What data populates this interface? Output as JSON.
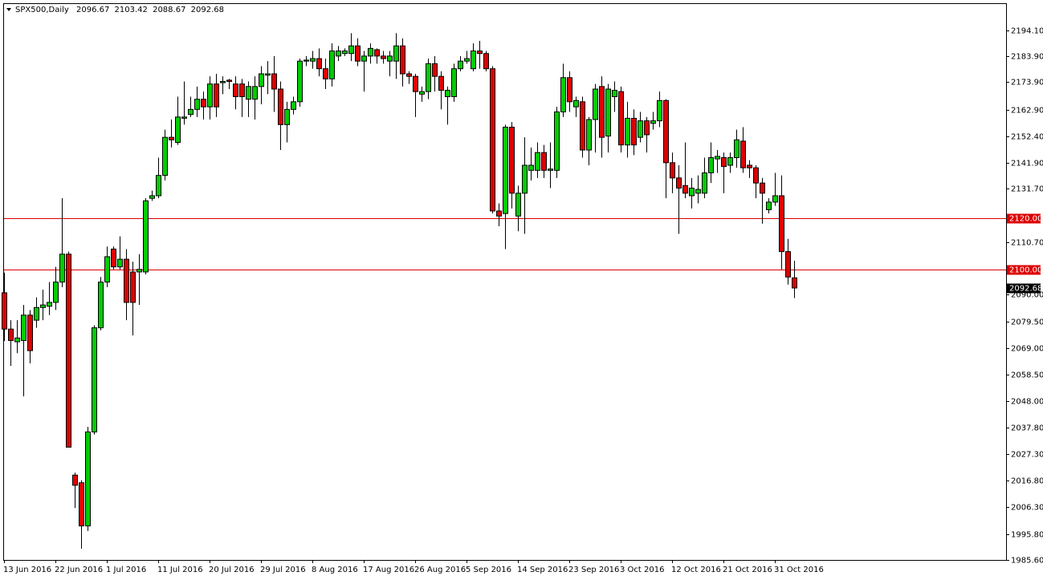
{
  "chart_data": {
    "type": "candlestick",
    "title": "SPX500,Daily",
    "up_color": "#00cc00",
    "down_color": "#dd0000",
    "categories": [
      "13 Jun 2016",
      null,
      null,
      null,
      null,
      null,
      null,
      null,
      "22 Jun 2016",
      null,
      null,
      null,
      null,
      null,
      null,
      null,
      "1 Jul 2016",
      null,
      null,
      null,
      null,
      null,
      null,
      null,
      "11 Jul 2016",
      null,
      null,
      null,
      null,
      null,
      null,
      null,
      "20 Jul 2016",
      null,
      null,
      null,
      null,
      null,
      null,
      null,
      "29 Jul 2016",
      null,
      null,
      null,
      null,
      null,
      null,
      null,
      "8 Aug 2016",
      null,
      null,
      null,
      null,
      null,
      null,
      null,
      "17 Aug 2016",
      null,
      null,
      null,
      null,
      null,
      null,
      null,
      "26 Aug 2016",
      null,
      null,
      null,
      null,
      null,
      null,
      null,
      "5 Sep 2016",
      null,
      null,
      null,
      null,
      null,
      null,
      null,
      "14 Sep 2016",
      null,
      null,
      null,
      null,
      null,
      null,
      null,
      "23 Sep 2016",
      null,
      null,
      null,
      null,
      null,
      null,
      null,
      "3 Oct 2016",
      null,
      null,
      null,
      null,
      null,
      null,
      null,
      "12 Oct 2016",
      null,
      null,
      null,
      null,
      null,
      null,
      null,
      "21 Oct 2016",
      null,
      null,
      null,
      null,
      null,
      null,
      null,
      "31 Oct 2016",
      null,
      null,
      null
    ],
    "open": [
      2090.8,
      2076.5,
      2071.5,
      2072,
      2082,
      2080,
      2085,
      2085.5,
      2087,
      2095,
      2106,
      2019,
      2016,
      1999,
      2036,
      2077,
      2095,
      2108,
      2101,
      2104,
      2099,
      2099,
      2099,
      2128,
      2129,
      2137,
      2152,
      2150,
      2159.5,
      2161,
      2163,
      2167,
      2164,
      2173,
      2173.5,
      2174.5,
      2173,
      2173,
      2167,
      2167,
      2172,
      2176.5,
      2177,
      2171,
      2157,
      2163,
      2166,
      2182,
      2182,
      2183,
      2179,
      2175,
      2184,
      2185,
      2185,
      2188,
      2182,
      2184,
      2186.5,
      2184,
      2182,
      2182,
      2188,
      2177,
      2176,
      2169,
      2170,
      2181,
      2176,
      2168,
      2168,
      2179,
      2182,
      2179,
      2186,
      2185,
      2179,
      2123,
      2122,
      2156,
      2121,
      2130,
      2139,
      2139,
      2146,
      2139,
      2139,
      2162,
      2175.5,
      2164,
      2166,
      2147,
      2159,
      2172,
      2152.5,
      2168,
      2170,
      2149,
      2159.5,
      2152,
      2158.5,
      2157.5,
      2158.5,
      2166.5,
      2142,
      2136,
      2133,
      2129,
      2130,
      2130,
      2138,
      2143.5,
      2144,
      2141,
      2144,
      2150.5,
      2141,
      2140,
      2134,
      2123.5,
      2126.5,
      2129,
      2107,
      2096.67
    ],
    "high": [
      2098.7,
      2080,
      2080,
      2086,
      2084,
      2089,
      2092,
      2095,
      2101,
      2128,
      2107,
      2020,
      2017,
      2038,
      2078,
      2097,
      2109,
      2109,
      2113,
      2108,
      2103,
      2106,
      2128,
      2131,
      2144,
      2155,
      2159,
      2168,
      2174,
      2168,
      2172,
      2170,
      2176,
      2177,
      2176,
      2175,
      2176,
      2175,
      2174,
      2176,
      2180,
      2182,
      2184,
      2174,
      2166,
      2168,
      2183,
      2184,
      2186,
      2187,
      2183,
      2189,
      2188,
      2187,
      2193,
      2191,
      2186,
      2189,
      2187,
      2186,
      2186,
      2193,
      2191,
      2178,
      2177,
      2172,
      2183,
      2184,
      2178,
      2172,
      2181,
      2184,
      2186,
      2189,
      2190,
      2186,
      2180,
      2126,
      2157,
      2158,
      2133,
      2152,
      2148,
      2150,
      2149,
      2150,
      2164,
      2181,
      2178,
      2168,
      2168,
      2160,
      2173,
      2176,
      2173,
      2174,
      2172,
      2166,
      2163,
      2162,
      2160,
      2162,
      2170,
      2167,
      2146,
      2141,
      2150,
      2136,
      2137,
      2144,
      2150,
      2147,
      2146,
      2146,
      2155,
      2156,
      2143,
      2141,
      2136,
      2128,
      2138,
      2137,
      2112,
      2103.42
    ],
    "low": [
      2071.8,
      2062,
      2067,
      2050,
      2063,
      2077,
      2080,
      2082,
      2084,
      2093,
      2030,
      2006,
      1990,
      1997,
      2035,
      2076,
      2093,
      2100,
      2100,
      2080,
      2074,
      2086,
      2098,
      2127,
      2128,
      2135,
      2148,
      2149,
      2157,
      2160,
      2160,
      2159,
      2159,
      2160,
      2169,
      2171,
      2163,
      2160,
      2160,
      2159,
      2165,
      2169,
      2162,
      2147,
      2150,
      2161,
      2164,
      2180,
      2179,
      2176,
      2171,
      2172,
      2182,
      2184,
      2182,
      2180,
      2170,
      2181,
      2181,
      2181,
      2176,
      2175,
      2172,
      2173,
      2160,
      2166,
      2167,
      2170,
      2163,
      2157,
      2166,
      2178,
      2181,
      2178,
      2179,
      2178,
      2122,
      2117,
      2108,
      2124,
      2115,
      2114,
      2135,
      2136,
      2136,
      2132,
      2136,
      2160,
      2162,
      2160,
      2144,
      2141,
      2146,
      2144,
      2146,
      2162,
      2146,
      2144,
      2145,
      2150,
      2146,
      2155,
      2156,
      2128,
      2130,
      2114,
      2128,
      2124,
      2126,
      2128,
      2134,
      2138,
      2130,
      2138,
      2140,
      2138,
      2136,
      2128,
      2118,
      2122,
      2125,
      2100,
      2094,
      2088.67
    ],
    "close": [
      2076.5,
      2072,
      2073,
      2082,
      2068,
      2085,
      2086,
      2087,
      2095,
      2106,
      2030,
      2015,
      1999,
      2036,
      2077,
      2095,
      2105,
      2101,
      2104,
      2087,
      2087,
      2100,
      2127,
      2129,
      2137,
      2152,
      2151,
      2160,
      2160,
      2163,
      2167,
      2164,
      2173,
      2164,
      2174,
      2174,
      2168,
      2168,
      2172,
      2172,
      2177,
      2177,
      2171,
      2157,
      2163,
      2166,
      2182,
      2182.4,
      2183,
      2179,
      2175,
      2186,
      2186,
      2186,
      2188,
      2182,
      2184,
      2187,
      2184,
      2183,
      2184,
      2188,
      2177,
      2176,
      2170,
      2170,
      2181,
      2176,
      2170.5,
      2170.5,
      2179,
      2182,
      2183,
      2186,
      2185,
      2179,
      2123,
      2121,
      2156,
      2130,
      2130,
      2141,
      2141,
      2146,
      2139,
      2139.5,
      2162,
      2175.5,
      2166,
      2166.5,
      2147,
      2159,
      2171,
      2152,
      2171,
      2170.5,
      2149,
      2159.5,
      2149,
      2158.5,
      2153,
      2158.5,
      2166.5,
      2142,
      2136,
      2132,
      2130,
      2132,
      2131.5,
      2138,
      2144,
      2144.5,
      2140.5,
      2144,
      2151,
      2140,
      2140,
      2134,
      2130,
      2126.5,
      2129,
      2107,
      2097,
      2092.68
    ],
    "ylim": [
      1985.6,
      2204.8
    ],
    "yticks": [
      {
        "value": 2194.1,
        "label": "2194.10"
      },
      {
        "value": 2183.9,
        "label": "2183.90"
      },
      {
        "value": 2173.9,
        "label": "2173.90"
      },
      {
        "value": 2162.9,
        "label": "2162.90"
      },
      {
        "value": 2152.4,
        "label": "2152.40"
      },
      {
        "value": 2141.9,
        "label": "2141.90"
      },
      {
        "value": 2131.7,
        "label": "2131.70"
      },
      {
        "value": 2110.7,
        "label": "2110.70"
      },
      {
        "value": 2090,
        "label": "2090.00"
      },
      {
        "value": 2079.5,
        "label": "2079.50"
      },
      {
        "value": 2069,
        "label": "2069.00"
      },
      {
        "value": 2058.5,
        "label": "2058.50"
      },
      {
        "value": 2048,
        "label": "2048.00"
      },
      {
        "value": 2037.8,
        "label": "2037.80"
      },
      {
        "value": 2027.3,
        "label": "2027.30"
      },
      {
        "value": 2016.8,
        "label": "2016.80"
      },
      {
        "value": 2006.3,
        "label": "2006.30"
      },
      {
        "value": 1995.8,
        "label": "1995.80"
      },
      {
        "value": 1985.6,
        "label": "1985.60"
      }
    ],
    "hlines": [
      {
        "value": 2120,
        "label": "2120.00",
        "color": "#dd0000"
      },
      {
        "value": 2100,
        "label": "2100.00",
        "color": "#dd0000"
      }
    ],
    "grid": false
  }
}
